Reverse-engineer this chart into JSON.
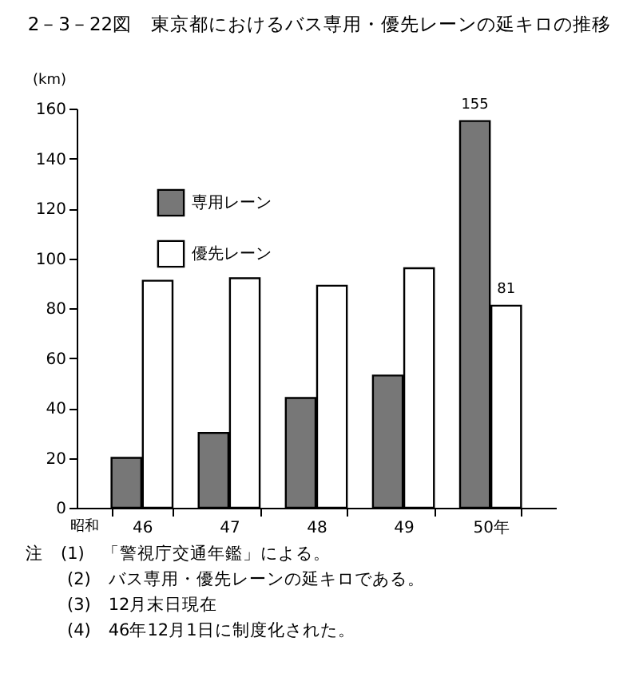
{
  "chart_data": {
    "type": "bar",
    "title": "2－3－22図　東京都におけるバス専用・優先レーンの延キロの推移",
    "ylabel": "(km)",
    "categories": [
      "46",
      "47",
      "48",
      "49",
      "50年"
    ],
    "series": [
      {
        "name": "専用レーン",
        "color": "#777777",
        "values": [
          20,
          30,
          44,
          53,
          155
        ],
        "value_labels": [
          null,
          null,
          null,
          null,
          "155"
        ]
      },
      {
        "name": "優先レーン",
        "color": "#ffffff",
        "values": [
          91,
          92,
          89,
          96,
          81
        ],
        "value_labels": [
          null,
          null,
          null,
          null,
          "81"
        ]
      }
    ],
    "ylim": [
      0,
      160
    ],
    "yticks": [
      0,
      20,
      40,
      60,
      80,
      100,
      120,
      140,
      160
    ],
    "grid": false,
    "legend": "top left",
    "annotations": [
      "昭和",
      "注　(1)　「警視庁交通年鑑」による。",
      "(2)　バス専用・優先レーンの延キロである。",
      "(3)　12月末日現在",
      "(4)　46年12月1日に制度化された。"
    ]
  }
}
